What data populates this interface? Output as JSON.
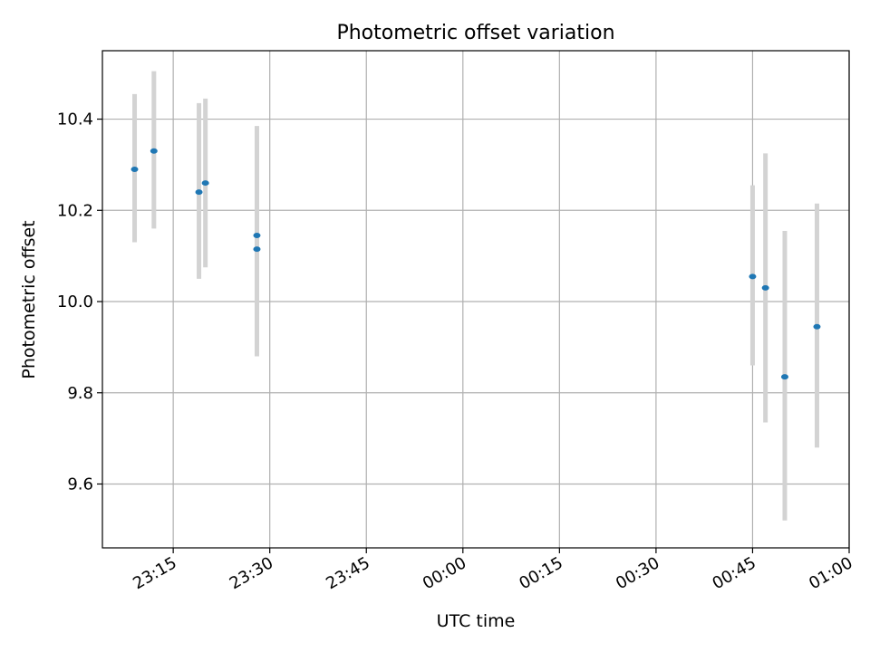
{
  "chart_data": {
    "type": "scatter",
    "title": "Photometric offset variation",
    "xlabel": "UTC time",
    "ylabel": "Photometric offset",
    "x_axis": {
      "kind": "time",
      "min": "23:04",
      "max": "01:00",
      "ticks": [
        "23:15",
        "23:30",
        "23:45",
        "00:00",
        "00:15",
        "00:30",
        "00:45",
        "01:00"
      ]
    },
    "y_axis": {
      "min": 9.46,
      "max": 10.55,
      "ticks": [
        9.6,
        9.8,
        10.0,
        10.2,
        10.4
      ],
      "tick_labels": [
        "9.6",
        "9.8",
        "10.0",
        "10.2",
        "10.4"
      ]
    },
    "grid": true,
    "legend": "none",
    "marker_color": "#1f77b4",
    "errorbar_color": "#d3d3d3",
    "points": [
      {
        "x": "23:09",
        "y": 10.29,
        "ylow": 10.13,
        "yhigh": 10.455
      },
      {
        "x": "23:12",
        "y": 10.33,
        "ylow": 10.16,
        "yhigh": 10.505
      },
      {
        "x": "23:19",
        "y": 10.24,
        "ylow": 10.05,
        "yhigh": 10.435
      },
      {
        "x": "23:20",
        "y": 10.26,
        "ylow": 10.075,
        "yhigh": 10.445
      },
      {
        "x": "23:28",
        "y": 10.145,
        "ylow": 9.905,
        "yhigh": 10.385
      },
      {
        "x": "23:28",
        "y": 10.115,
        "ylow": 9.88,
        "yhigh": 10.35
      },
      {
        "x": "00:45",
        "y": 10.055,
        "ylow": 9.86,
        "yhigh": 10.255
      },
      {
        "x": "00:47",
        "y": 10.03,
        "ylow": 9.735,
        "yhigh": 10.325
      },
      {
        "x": "00:50",
        "y": 9.835,
        "ylow": 9.52,
        "yhigh": 10.155
      },
      {
        "x": "00:55",
        "y": 9.945,
        "ylow": 9.68,
        "yhigh": 10.215
      }
    ]
  }
}
